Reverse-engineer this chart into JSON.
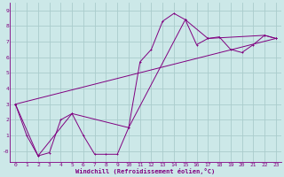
{
  "xlabel": "Windchill (Refroidissement éolien,°C)",
  "bg_color": "#cce8e8",
  "line_color": "#800080",
  "grid_color": "#aacccc",
  "xlim": [
    -0.5,
    23.5
  ],
  "ylim": [
    -0.7,
    9.5
  ],
  "xticks": [
    0,
    1,
    2,
    3,
    4,
    5,
    6,
    7,
    8,
    9,
    10,
    11,
    12,
    13,
    14,
    15,
    16,
    17,
    18,
    19,
    20,
    21,
    22,
    23
  ],
  "yticks": [
    0,
    1,
    2,
    3,
    4,
    5,
    6,
    7,
    8,
    9
  ],
  "ytick_labels": [
    "-0",
    "1",
    "2",
    "3",
    "4",
    "5",
    "6",
    "7",
    "8",
    "9"
  ],
  "line1_x": [
    0,
    1,
    2,
    3,
    4,
    5,
    6,
    7,
    8,
    9,
    10,
    11,
    12,
    13,
    14,
    15,
    16,
    17,
    18,
    19,
    20,
    21,
    22,
    23
  ],
  "line1_y": [
    3.0,
    1.0,
    -0.3,
    -0.1,
    2.0,
    2.4,
    1.0,
    -0.2,
    -0.2,
    -0.2,
    1.5,
    5.7,
    6.5,
    8.3,
    8.8,
    8.4,
    6.8,
    7.2,
    7.3,
    6.5,
    6.3,
    6.8,
    7.4,
    7.2
  ],
  "line2_x": [
    0,
    2,
    5,
    10,
    15,
    17,
    22,
    23
  ],
  "line2_y": [
    3.0,
    -0.3,
    2.4,
    1.5,
    8.4,
    7.2,
    7.4,
    7.2
  ],
  "line3_x": [
    0,
    23
  ],
  "line3_y": [
    3.0,
    7.2
  ]
}
